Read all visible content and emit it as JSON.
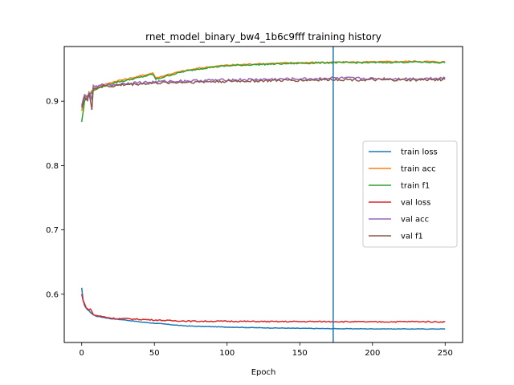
{
  "chart_data": {
    "type": "line",
    "title": "rnet_model_binary_bw4_1b6c9fff training history",
    "xlabel": "Epoch",
    "ylabel": "",
    "xlim": [
      -12,
      262
    ],
    "ylim": [
      0.525,
      0.985
    ],
    "xticks": [
      0,
      50,
      100,
      150,
      200,
      250
    ],
    "yticks": [
      0.6,
      0.7,
      0.8,
      0.9
    ],
    "vline_x": 173,
    "legend_position": "center-right",
    "grid": false,
    "series": [
      {
        "name": "train loss",
        "color": "#1f77b4",
        "points": [
          [
            0,
            0.61
          ],
          [
            1,
            0.59
          ],
          [
            2,
            0.582
          ],
          [
            4,
            0.576
          ],
          [
            6,
            0.572
          ],
          [
            8,
            0.568
          ],
          [
            10,
            0.566
          ],
          [
            15,
            0.564
          ],
          [
            20,
            0.562
          ],
          [
            30,
            0.56
          ],
          [
            40,
            0.557
          ],
          [
            50,
            0.555
          ],
          [
            60,
            0.553
          ],
          [
            70,
            0.551
          ],
          [
            80,
            0.55
          ],
          [
            100,
            0.549
          ],
          [
            120,
            0.548
          ],
          [
            150,
            0.547
          ],
          [
            173,
            0.5465
          ],
          [
            200,
            0.5462
          ],
          [
            230,
            0.546
          ],
          [
            250,
            0.546
          ]
        ]
      },
      {
        "name": "train acc",
        "color": "#ff7f0e",
        "points": [
          [
            0,
            0.885
          ],
          [
            2,
            0.905
          ],
          [
            5,
            0.912
          ],
          [
            8,
            0.918
          ],
          [
            10,
            0.921
          ],
          [
            15,
            0.925
          ],
          [
            20,
            0.929
          ],
          [
            25,
            0.932
          ],
          [
            30,
            0.934
          ],
          [
            40,
            0.939
          ],
          [
            49,
            0.944
          ],
          [
            51,
            0.936
          ],
          [
            60,
            0.942
          ],
          [
            70,
            0.947
          ],
          [
            80,
            0.951
          ],
          [
            90,
            0.954
          ],
          [
            100,
            0.956
          ],
          [
            120,
            0.958
          ],
          [
            150,
            0.96
          ],
          [
            173,
            0.9605
          ],
          [
            200,
            0.961
          ],
          [
            230,
            0.962
          ],
          [
            250,
            0.961
          ]
        ]
      },
      {
        "name": "train f1",
        "color": "#2ca02c",
        "points": [
          [
            0,
            0.868
          ],
          [
            2,
            0.9
          ],
          [
            5,
            0.91
          ],
          [
            8,
            0.916
          ],
          [
            10,
            0.919
          ],
          [
            15,
            0.923
          ],
          [
            20,
            0.927
          ],
          [
            25,
            0.93
          ],
          [
            30,
            0.932
          ],
          [
            40,
            0.937
          ],
          [
            49,
            0.942
          ],
          [
            51,
            0.934
          ],
          [
            60,
            0.94
          ],
          [
            70,
            0.946
          ],
          [
            80,
            0.95
          ],
          [
            90,
            0.953
          ],
          [
            100,
            0.955
          ],
          [
            120,
            0.957
          ],
          [
            150,
            0.959
          ],
          [
            173,
            0.96
          ],
          [
            200,
            0.96
          ],
          [
            230,
            0.961
          ],
          [
            250,
            0.96
          ]
        ]
      },
      {
        "name": "val loss",
        "color": "#d62728",
        "points": [
          [
            0,
            0.6
          ],
          [
            1,
            0.59
          ],
          [
            3,
            0.58
          ],
          [
            5,
            0.575
          ],
          [
            6,
            0.578
          ],
          [
            8,
            0.568
          ],
          [
            10,
            0.567
          ],
          [
            15,
            0.565
          ],
          [
            20,
            0.563
          ],
          [
            25,
            0.562
          ],
          [
            30,
            0.562
          ],
          [
            40,
            0.561
          ],
          [
            50,
            0.56
          ],
          [
            60,
            0.559
          ],
          [
            80,
            0.558
          ],
          [
            100,
            0.558
          ],
          [
            130,
            0.5575
          ],
          [
            160,
            0.5575
          ],
          [
            173,
            0.5575
          ],
          [
            200,
            0.557
          ],
          [
            230,
            0.5575
          ],
          [
            250,
            0.557
          ]
        ]
      },
      {
        "name": "val acc",
        "color": "#9467bd",
        "points": [
          [
            0,
            0.893
          ],
          [
            2,
            0.91
          ],
          [
            4,
            0.905
          ],
          [
            5,
            0.915
          ],
          [
            7,
            0.9
          ],
          [
            8,
            0.925
          ],
          [
            10,
            0.922
          ],
          [
            15,
            0.926
          ],
          [
            20,
            0.925
          ],
          [
            30,
            0.928
          ],
          [
            40,
            0.929
          ],
          [
            50,
            0.93
          ],
          [
            60,
            0.931
          ],
          [
            80,
            0.932
          ],
          [
            100,
            0.933
          ],
          [
            130,
            0.934
          ],
          [
            160,
            0.935
          ],
          [
            173,
            0.936
          ],
          [
            200,
            0.935
          ],
          [
            230,
            0.935
          ],
          [
            250,
            0.936
          ]
        ]
      },
      {
        "name": "val f1",
        "color": "#8c564b",
        "points": [
          [
            0,
            0.89
          ],
          [
            2,
            0.907
          ],
          [
            4,
            0.9
          ],
          [
            5,
            0.912
          ],
          [
            7,
            0.887
          ],
          [
            8,
            0.922
          ],
          [
            10,
            0.92
          ],
          [
            15,
            0.924
          ],
          [
            20,
            0.923
          ],
          [
            30,
            0.926
          ],
          [
            40,
            0.927
          ],
          [
            50,
            0.928
          ],
          [
            60,
            0.929
          ],
          [
            80,
            0.93
          ],
          [
            100,
            0.931
          ],
          [
            130,
            0.932
          ],
          [
            160,
            0.933
          ],
          [
            173,
            0.934
          ],
          [
            200,
            0.933
          ],
          [
            230,
            0.933
          ],
          [
            250,
            0.934
          ]
        ]
      }
    ]
  }
}
